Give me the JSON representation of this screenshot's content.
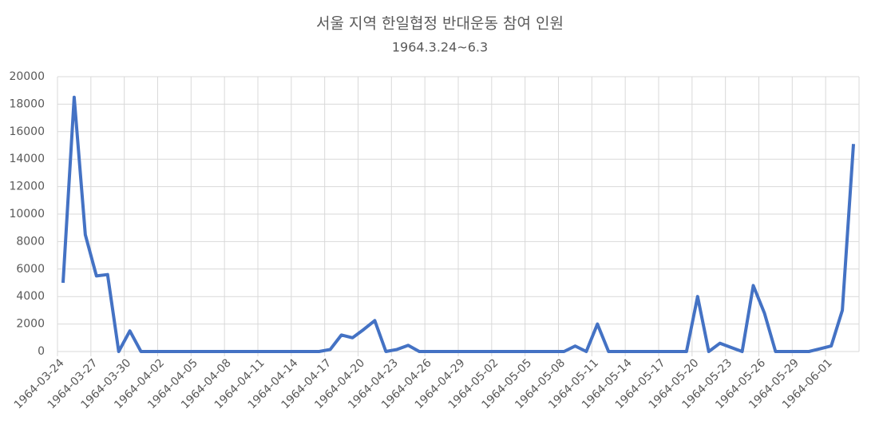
{
  "chart_data": {
    "type": "line",
    "title": "서울 지역 한일협정 반대운동 참여 인원",
    "subtitle": "1964.3.24~6.3",
    "x": [
      "1964-03-24",
      "1964-03-25",
      "1964-03-26",
      "1964-03-27",
      "1964-03-28",
      "1964-03-29",
      "1964-03-30",
      "1964-03-31",
      "1964-04-01",
      "1964-04-02",
      "1964-04-03",
      "1964-04-04",
      "1964-04-05",
      "1964-04-06",
      "1964-04-07",
      "1964-04-08",
      "1964-04-09",
      "1964-04-10",
      "1964-04-11",
      "1964-04-12",
      "1964-04-13",
      "1964-04-14",
      "1964-04-15",
      "1964-04-16",
      "1964-04-17",
      "1964-04-18",
      "1964-04-19",
      "1964-04-20",
      "1964-04-21",
      "1964-04-22",
      "1964-04-23",
      "1964-04-24",
      "1964-04-25",
      "1964-04-26",
      "1964-04-27",
      "1964-04-28",
      "1964-04-29",
      "1964-04-30",
      "1964-05-01",
      "1964-05-02",
      "1964-05-03",
      "1964-05-04",
      "1964-05-05",
      "1964-05-06",
      "1964-05-07",
      "1964-05-08",
      "1964-05-09",
      "1964-05-10",
      "1964-05-11",
      "1964-05-12",
      "1964-05-13",
      "1964-05-14",
      "1964-05-15",
      "1964-05-16",
      "1964-05-17",
      "1964-05-18",
      "1964-05-19",
      "1964-05-20",
      "1964-05-21",
      "1964-05-22",
      "1964-05-23",
      "1964-05-24",
      "1964-05-25",
      "1964-05-26",
      "1964-05-27",
      "1964-05-28",
      "1964-05-29",
      "1964-05-30",
      "1964-05-31",
      "1964-06-01",
      "1964-06-02",
      "1964-06-03"
    ],
    "xticks": [
      "1964-03-24",
      "1964-03-27",
      "1964-03-30",
      "1964-04-02",
      "1964-04-05",
      "1964-04-08",
      "1964-04-11",
      "1964-04-14",
      "1964-04-17",
      "1964-04-20",
      "1964-04-23",
      "1964-04-26",
      "1964-04-29",
      "1964-05-02",
      "1964-05-05",
      "1964-05-08",
      "1964-05-11",
      "1964-05-14",
      "1964-05-17",
      "1964-05-20",
      "1964-05-23",
      "1964-05-26",
      "1964-05-29",
      "1964-06-01"
    ],
    "series": [
      {
        "name": "참여 인원",
        "color": "#4472c4",
        "values": [
          5000,
          18500,
          8500,
          5500,
          5600,
          0,
          1500,
          0,
          0,
          0,
          0,
          0,
          0,
          0,
          0,
          0,
          0,
          0,
          0,
          0,
          0,
          0,
          0,
          0,
          150,
          1200,
          1000,
          1600,
          2250,
          0,
          150,
          450,
          0,
          0,
          0,
          0,
          0,
          0,
          0,
          0,
          0,
          0,
          0,
          0,
          0,
          0,
          400,
          0,
          2000,
          0,
          0,
          0,
          0,
          0,
          0,
          0,
          0,
          4000,
          0,
          600,
          300,
          0,
          4800,
          2800,
          0,
          0,
          0,
          0,
          200,
          400,
          3000,
          15100
        ]
      }
    ],
    "ylim": [
      0,
      20000
    ],
    "yticks": [
      0,
      2000,
      4000,
      6000,
      8000,
      10000,
      12000,
      14000,
      16000,
      18000,
      20000
    ],
    "grid": true
  }
}
